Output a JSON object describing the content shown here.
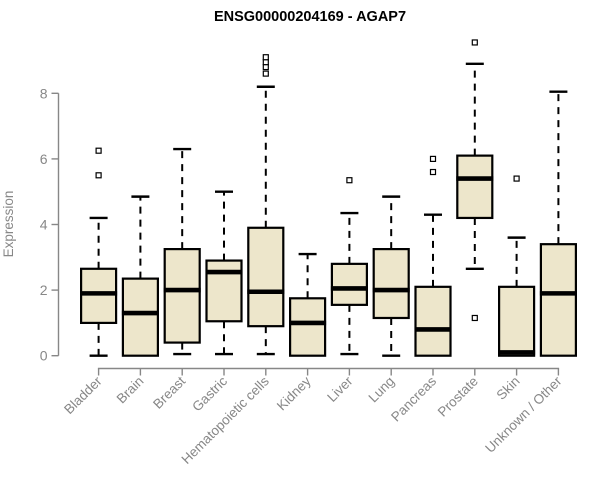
{
  "chart_data": {
    "type": "boxplot",
    "title": "ENSG00000204169 - AGAP7",
    "xlabel": "",
    "ylabel": "Expression",
    "yticks": [
      0,
      2,
      4,
      6,
      8
    ],
    "ylim": [
      0,
      9.6
    ],
    "grid": false,
    "legend": "none",
    "categories": [
      "Bladder",
      "Brain",
      "Breast",
      "Gastric",
      "Hematopoietic cells",
      "Kidney",
      "Liver",
      "Lung",
      "Pancreas",
      "Prostate",
      "Skin",
      "Unknown / Other"
    ],
    "boxes": [
      {
        "category": "Bladder",
        "low": 0,
        "q1": 1.0,
        "median": 1.9,
        "q3": 2.65,
        "high": 4.2,
        "outliers": [
          5.5,
          6.25
        ]
      },
      {
        "category": "Brain",
        "low": 0,
        "q1": 0,
        "median": 1.3,
        "q3": 2.35,
        "high": 4.85,
        "outliers": []
      },
      {
        "category": "Breast",
        "low": 0.05,
        "q1": 0.4,
        "median": 2.0,
        "q3": 3.25,
        "high": 6.3,
        "outliers": []
      },
      {
        "category": "Gastric",
        "low": 0.05,
        "q1": 1.05,
        "median": 2.55,
        "q3": 2.9,
        "high": 5.0,
        "outliers": []
      },
      {
        "category": "Hematopoietic cells",
        "low": 0.05,
        "q1": 0.9,
        "median": 1.95,
        "q3": 3.9,
        "high": 8.2,
        "outliers": [
          8.6,
          8.8,
          8.95,
          9.1
        ]
      },
      {
        "category": "Kidney",
        "low": 0,
        "q1": 0,
        "median": 1.0,
        "q3": 1.75,
        "high": 3.1,
        "outliers": []
      },
      {
        "category": "Liver",
        "low": 0.05,
        "q1": 1.55,
        "median": 2.05,
        "q3": 2.8,
        "high": 4.35,
        "outliers": [
          5.35
        ]
      },
      {
        "category": "Lung",
        "low": 0,
        "q1": 1.15,
        "median": 2.0,
        "q3": 3.25,
        "high": 4.85,
        "outliers": []
      },
      {
        "category": "Pancreas",
        "low": 0,
        "q1": 0,
        "median": 0.8,
        "q3": 2.1,
        "high": 4.3,
        "outliers": [
          5.6,
          6.0
        ]
      },
      {
        "category": "Prostate",
        "low": 2.65,
        "q1": 4.2,
        "median": 5.4,
        "q3": 6.1,
        "high": 8.9,
        "outliers": [
          1.15,
          9.55
        ]
      },
      {
        "category": "Skin",
        "low": 0,
        "q1": 0,
        "median": 0.1,
        "q3": 2.1,
        "high": 3.6,
        "outliers": [
          5.4
        ]
      },
      {
        "category": "Unknown / Other",
        "low": 0,
        "q1": 0,
        "median": 1.9,
        "q3": 3.4,
        "high": 8.05,
        "outliers": []
      }
    ],
    "colors": {
      "box_fill": "#EDE6CB",
      "box_stroke": "#000000",
      "median": "#000000",
      "whisker": "#000000",
      "outlier_stroke": "#000000",
      "outlier_fill": "#ffffff",
      "axis": "#878787",
      "title": "#000000",
      "background": "#ffffff"
    }
  }
}
